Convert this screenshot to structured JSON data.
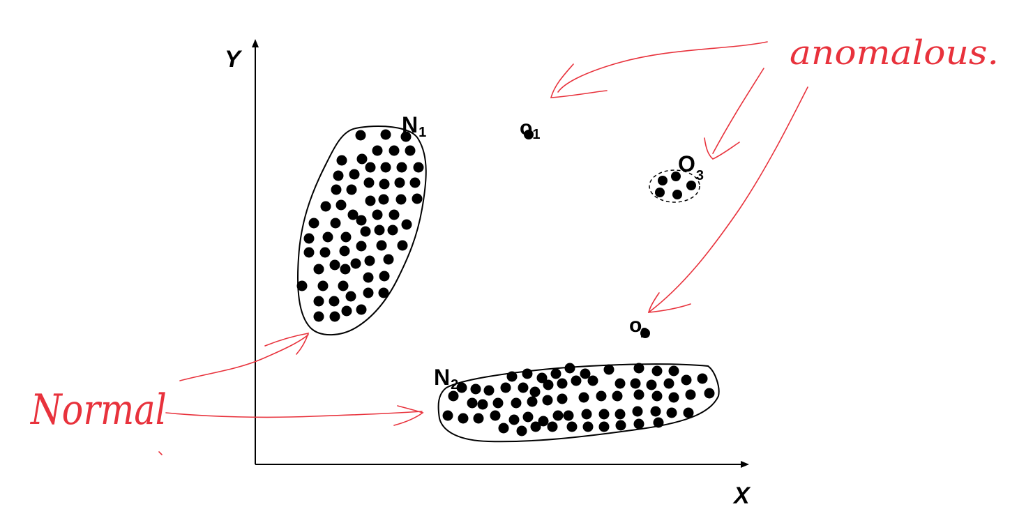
{
  "axes": {
    "x_label": "X",
    "y_label": "Y"
  },
  "regions": [
    {
      "id": "N1",
      "letter": "N",
      "sub": "1",
      "kind": "normal"
    },
    {
      "id": "N2",
      "letter": "N",
      "sub": "2",
      "kind": "normal"
    },
    {
      "id": "O3",
      "letter": "O",
      "sub": "3",
      "kind": "anomalous"
    }
  ],
  "points": [
    {
      "id": "o1",
      "letter": "o",
      "sub": "1"
    },
    {
      "id": "o2",
      "letter": "o",
      "sub": "2"
    }
  ],
  "annotations": {
    "anomalous": "anomalous.",
    "normal": "Normal"
  },
  "colors": {
    "ink": "#000000",
    "annotation": "#e8323c"
  }
}
